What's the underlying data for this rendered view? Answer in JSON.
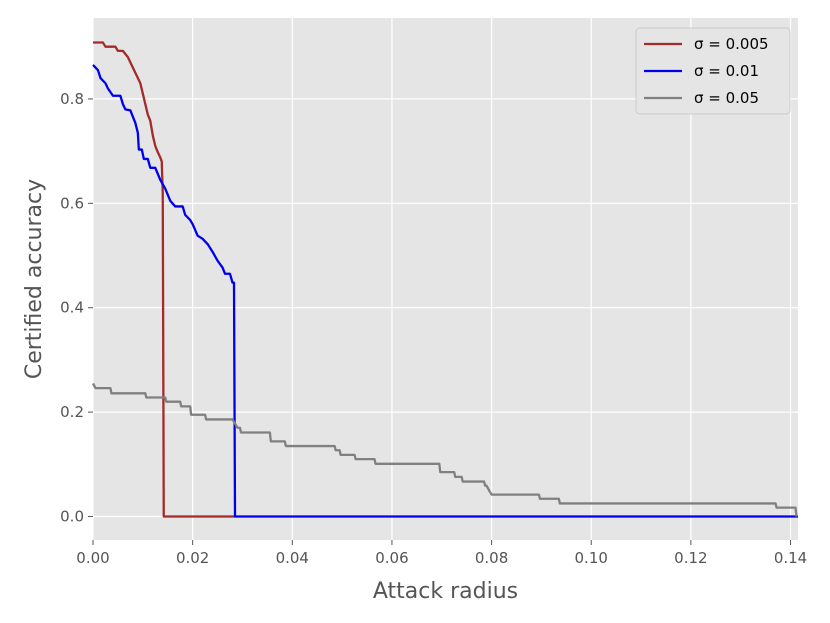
{
  "chart_data": {
    "type": "line",
    "title": "",
    "xlabel": "Attack radius",
    "ylabel": "Certified accuracy",
    "xlim": [
      0,
      0.1415
    ],
    "ylim": [
      -0.045,
      0.955
    ],
    "xticks": [
      0.0,
      0.02,
      0.04,
      0.06,
      0.08,
      0.1,
      0.12,
      0.14
    ],
    "xtick_labels": [
      "0.00",
      "0.02",
      "0.04",
      "0.06",
      "0.08",
      "0.10",
      "0.12",
      "0.14"
    ],
    "yticks": [
      0.0,
      0.2,
      0.4,
      0.6,
      0.8
    ],
    "ytick_labels": [
      "0.0",
      "0.2",
      "0.4",
      "0.6",
      "0.8"
    ],
    "grid": true,
    "legend_position": "top-right",
    "background": "#e5e5e5",
    "series": [
      {
        "name": "σ = 0.005",
        "color": "#a52a2a",
        "points": [
          [
            0.0,
            0.908
          ],
          [
            0.002,
            0.908
          ],
          [
            0.0025,
            0.9
          ],
          [
            0.0045,
            0.9
          ],
          [
            0.005,
            0.892
          ],
          [
            0.006,
            0.892
          ],
          [
            0.007,
            0.88
          ],
          [
            0.008,
            0.86
          ],
          [
            0.009,
            0.84
          ],
          [
            0.0095,
            0.83
          ],
          [
            0.01,
            0.81
          ],
          [
            0.011,
            0.77
          ],
          [
            0.0115,
            0.758
          ],
          [
            0.012,
            0.73
          ],
          [
            0.0125,
            0.71
          ],
          [
            0.013,
            0.698
          ],
          [
            0.0135,
            0.688
          ],
          [
            0.0138,
            0.68
          ],
          [
            0.014,
            0.62
          ],
          [
            0.0142,
            0.0
          ],
          [
            0.0145,
            0.0
          ],
          [
            0.0285,
            0.0
          ]
        ]
      },
      {
        "name": "σ = 0.01",
        "color": "#0000ee",
        "points": [
          [
            0.0,
            0.865
          ],
          [
            0.001,
            0.855
          ],
          [
            0.0015,
            0.84
          ],
          [
            0.0025,
            0.83
          ],
          [
            0.003,
            0.82
          ],
          [
            0.004,
            0.806
          ],
          [
            0.0055,
            0.806
          ],
          [
            0.006,
            0.79
          ],
          [
            0.0065,
            0.78
          ],
          [
            0.0075,
            0.778
          ],
          [
            0.0085,
            0.754
          ],
          [
            0.009,
            0.735
          ],
          [
            0.0092,
            0.703
          ],
          [
            0.0098,
            0.703
          ],
          [
            0.0102,
            0.685
          ],
          [
            0.011,
            0.685
          ],
          [
            0.0115,
            0.668
          ],
          [
            0.0125,
            0.668
          ],
          [
            0.0135,
            0.645
          ],
          [
            0.0145,
            0.628
          ],
          [
            0.0155,
            0.605
          ],
          [
            0.0165,
            0.594
          ],
          [
            0.018,
            0.594
          ],
          [
            0.0185,
            0.578
          ],
          [
            0.0195,
            0.568
          ],
          [
            0.02,
            0.56
          ],
          [
            0.021,
            0.538
          ],
          [
            0.022,
            0.532
          ],
          [
            0.023,
            0.522
          ],
          [
            0.024,
            0.507
          ],
          [
            0.025,
            0.49
          ],
          [
            0.026,
            0.477
          ],
          [
            0.0265,
            0.465
          ],
          [
            0.0275,
            0.465
          ],
          [
            0.028,
            0.448
          ],
          [
            0.0283,
            0.448
          ],
          [
            0.0285,
            0.0
          ],
          [
            0.1415,
            0.0
          ]
        ]
      },
      {
        "name": "σ = 0.05",
        "color": "#808080",
        "points": [
          [
            0.0,
            0.255
          ],
          [
            0.0005,
            0.246
          ],
          [
            0.0035,
            0.246
          ],
          [
            0.0037,
            0.236
          ],
          [
            0.0105,
            0.236
          ],
          [
            0.0107,
            0.228
          ],
          [
            0.0145,
            0.228
          ],
          [
            0.0147,
            0.22
          ],
          [
            0.0175,
            0.22
          ],
          [
            0.0177,
            0.211
          ],
          [
            0.0195,
            0.211
          ],
          [
            0.0197,
            0.195
          ],
          [
            0.0225,
            0.195
          ],
          [
            0.0227,
            0.186
          ],
          [
            0.028,
            0.186
          ],
          [
            0.0285,
            0.178
          ],
          [
            0.029,
            0.17
          ],
          [
            0.0295,
            0.17
          ],
          [
            0.0297,
            0.161
          ],
          [
            0.0355,
            0.161
          ],
          [
            0.0357,
            0.144
          ],
          [
            0.0385,
            0.144
          ],
          [
            0.0387,
            0.135
          ],
          [
            0.0485,
            0.135
          ],
          [
            0.0487,
            0.127
          ],
          [
            0.0495,
            0.127
          ],
          [
            0.0497,
            0.118
          ],
          [
            0.0525,
            0.118
          ],
          [
            0.0527,
            0.11
          ],
          [
            0.0565,
            0.11
          ],
          [
            0.0567,
            0.101
          ],
          [
            0.0695,
            0.101
          ],
          [
            0.0697,
            0.085
          ],
          [
            0.0725,
            0.085
          ],
          [
            0.0727,
            0.076
          ],
          [
            0.074,
            0.076
          ],
          [
            0.0742,
            0.067
          ],
          [
            0.0785,
            0.067
          ],
          [
            0.0787,
            0.059
          ],
          [
            0.079,
            0.059
          ],
          [
            0.0795,
            0.05
          ],
          [
            0.08,
            0.042
          ],
          [
            0.0895,
            0.042
          ],
          [
            0.0897,
            0.034
          ],
          [
            0.0935,
            0.034
          ],
          [
            0.0937,
            0.025
          ],
          [
            0.137,
            0.025
          ],
          [
            0.1372,
            0.017
          ],
          [
            0.141,
            0.017
          ],
          [
            0.1412,
            0.0
          ]
        ]
      }
    ]
  }
}
